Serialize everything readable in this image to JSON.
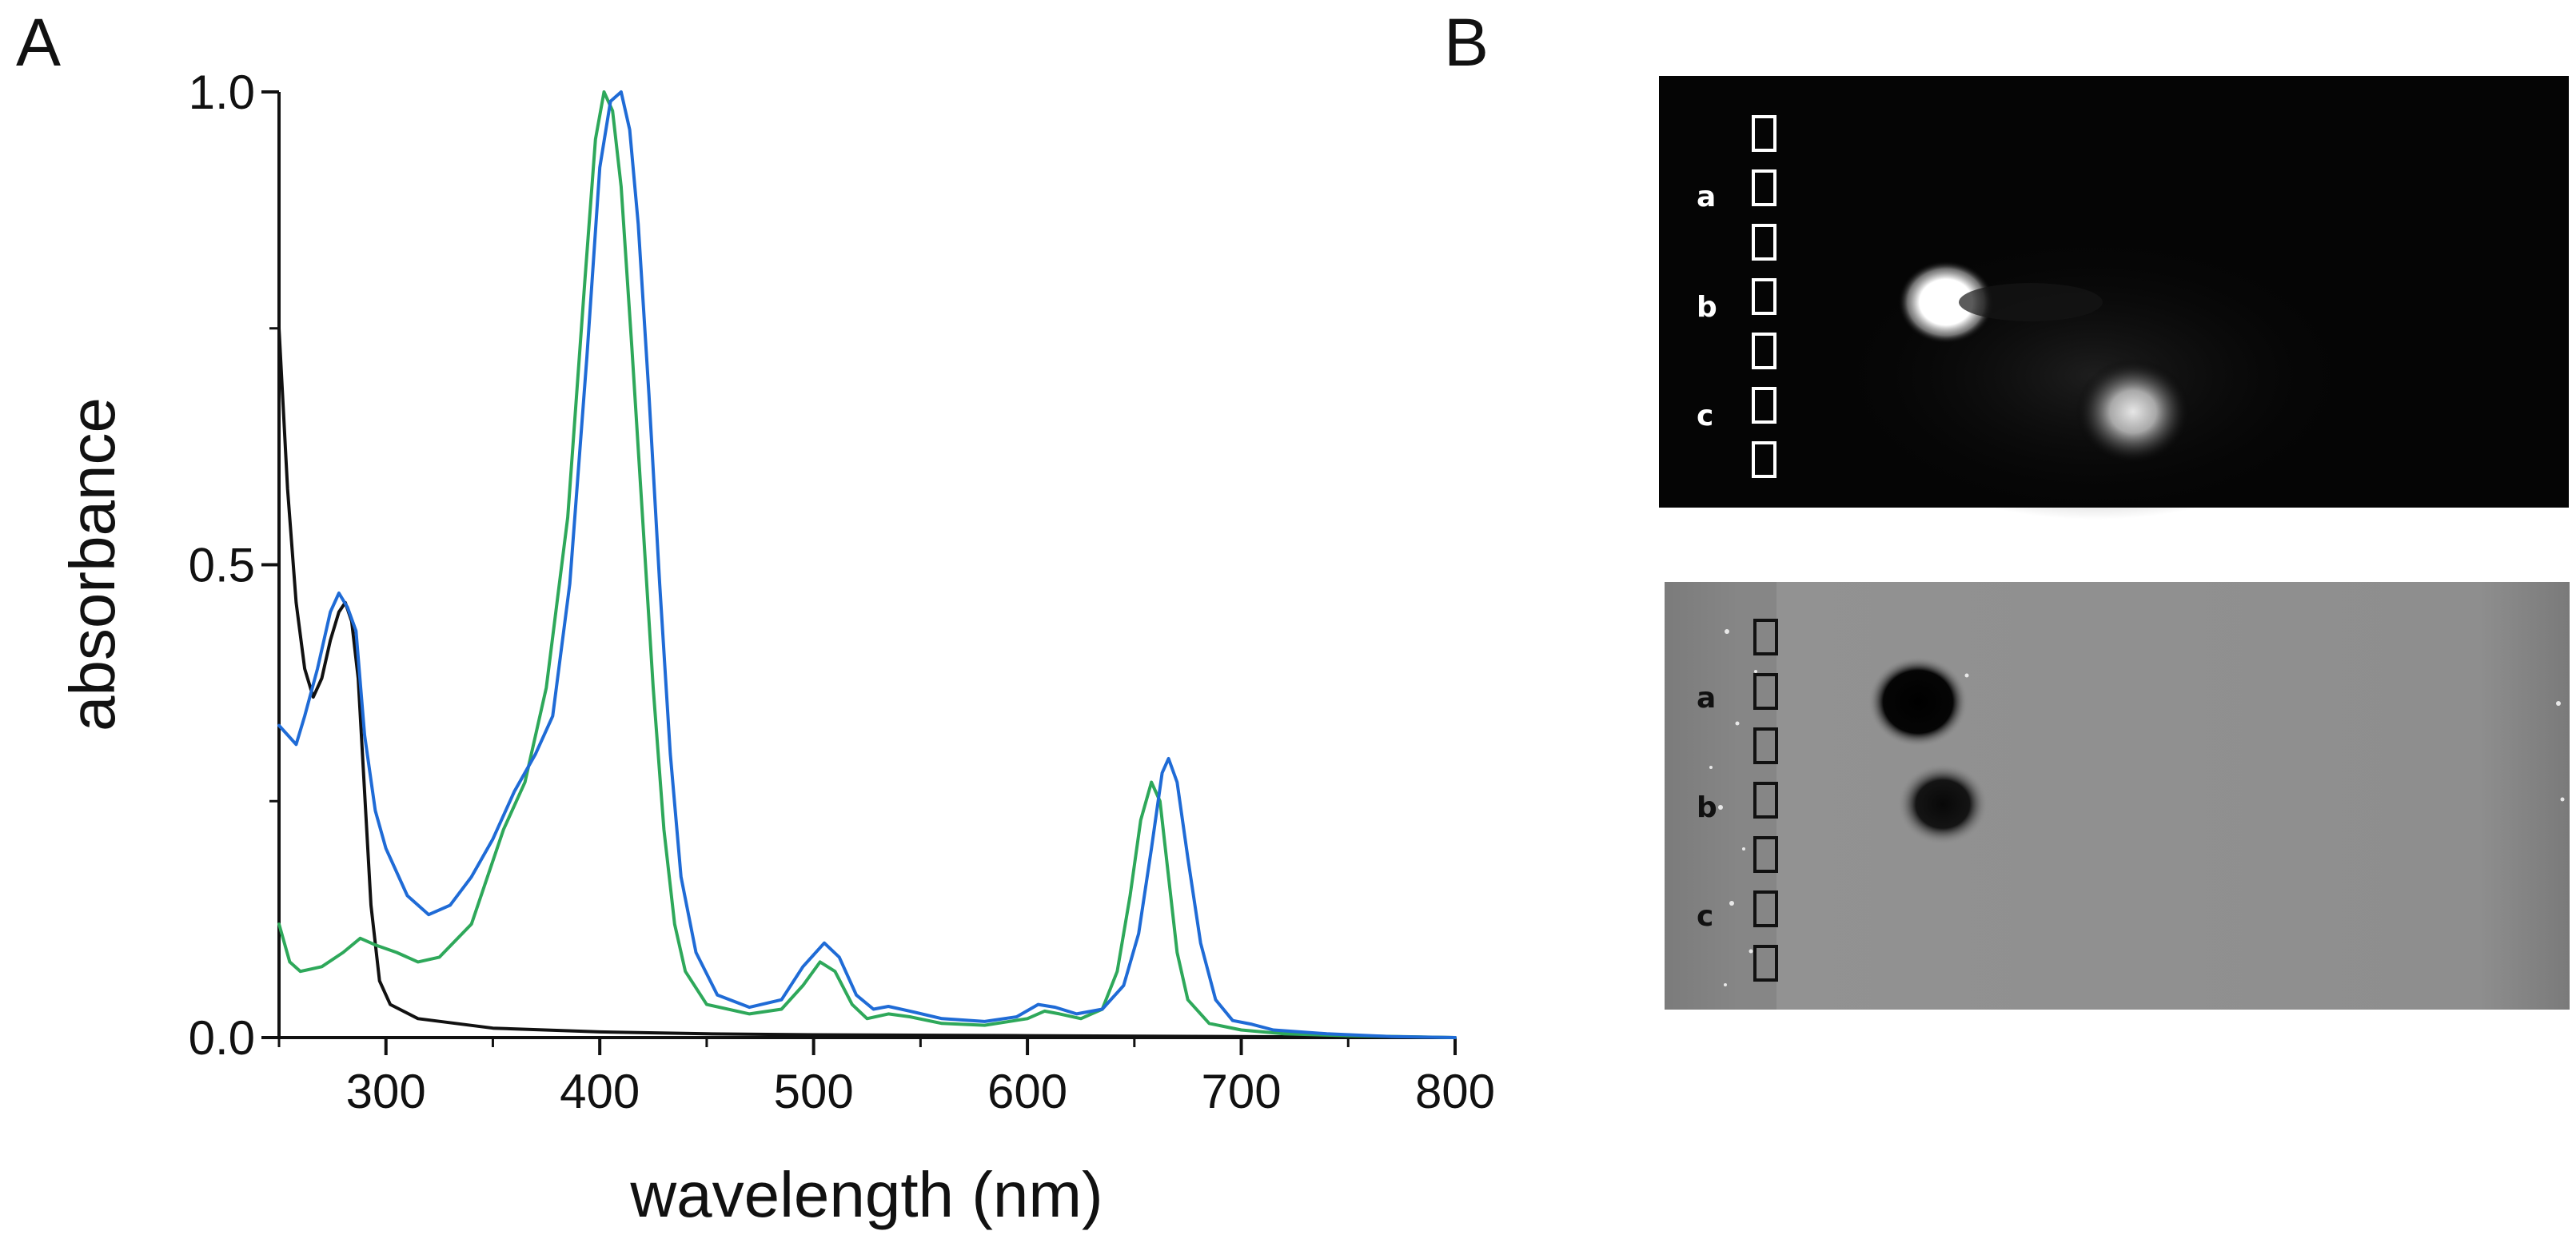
{
  "panel_labels": {
    "a": "A",
    "b": "B"
  },
  "chart_data": {
    "type": "line",
    "title": "",
    "xlabel": "wavelength (nm)",
    "ylabel": "absorbance",
    "xlim": [
      250,
      800
    ],
    "ylim": [
      0,
      1.0
    ],
    "x_ticks": [
      300,
      400,
      500,
      600,
      700,
      800
    ],
    "x_tick_labels": [
      "300",
      "400",
      "500",
      "600",
      "700",
      "800"
    ],
    "y_ticks": [
      0,
      0.5,
      1.0
    ],
    "y_tick_labels": [
      "0.0",
      "0.5",
      "1.0"
    ],
    "grid": false,
    "series": [
      {
        "name": "black",
        "color": "#111111",
        "points": [
          [
            250,
            0.75
          ],
          [
            254,
            0.58
          ],
          [
            258,
            0.46
          ],
          [
            262,
            0.39
          ],
          [
            266,
            0.36
          ],
          [
            270,
            0.38
          ],
          [
            274,
            0.42
          ],
          [
            278,
            0.45
          ],
          [
            281,
            0.46
          ],
          [
            284,
            0.44
          ],
          [
            287,
            0.38
          ],
          [
            290,
            0.26
          ],
          [
            293,
            0.14
          ],
          [
            297,
            0.06
          ],
          [
            302,
            0.035
          ],
          [
            315,
            0.02
          ],
          [
            350,
            0.01
          ],
          [
            400,
            0.006
          ],
          [
            450,
            0.004
          ],
          [
            500,
            0.003
          ],
          [
            600,
            0.002
          ],
          [
            700,
            0.001
          ],
          [
            800,
            0.0
          ]
        ]
      },
      {
        "name": "green",
        "color": "#2ea85a",
        "points": [
          [
            250,
            0.12
          ],
          [
            255,
            0.08
          ],
          [
            260,
            0.07
          ],
          [
            270,
            0.075
          ],
          [
            280,
            0.09
          ],
          [
            288,
            0.105
          ],
          [
            295,
            0.098
          ],
          [
            305,
            0.09
          ],
          [
            315,
            0.08
          ],
          [
            325,
            0.085
          ],
          [
            340,
            0.12
          ],
          [
            355,
            0.22
          ],
          [
            365,
            0.27
          ],
          [
            375,
            0.37
          ],
          [
            385,
            0.55
          ],
          [
            393,
            0.8
          ],
          [
            398,
            0.95
          ],
          [
            402,
            1.0
          ],
          [
            406,
            0.98
          ],
          [
            410,
            0.9
          ],
          [
            415,
            0.73
          ],
          [
            420,
            0.55
          ],
          [
            425,
            0.37
          ],
          [
            430,
            0.22
          ],
          [
            435,
            0.12
          ],
          [
            440,
            0.07
          ],
          [
            450,
            0.035
          ],
          [
            470,
            0.025
          ],
          [
            485,
            0.03
          ],
          [
            495,
            0.055
          ],
          [
            503,
            0.08
          ],
          [
            510,
            0.07
          ],
          [
            518,
            0.035
          ],
          [
            525,
            0.02
          ],
          [
            535,
            0.025
          ],
          [
            545,
            0.022
          ],
          [
            560,
            0.015
          ],
          [
            580,
            0.013
          ],
          [
            600,
            0.02
          ],
          [
            608,
            0.028
          ],
          [
            615,
            0.025
          ],
          [
            625,
            0.02
          ],
          [
            635,
            0.03
          ],
          [
            642,
            0.07
          ],
          [
            648,
            0.15
          ],
          [
            653,
            0.23
          ],
          [
            658,
            0.27
          ],
          [
            662,
            0.25
          ],
          [
            666,
            0.17
          ],
          [
            670,
            0.09
          ],
          [
            675,
            0.04
          ],
          [
            685,
            0.015
          ],
          [
            700,
            0.008
          ],
          [
            720,
            0.004
          ],
          [
            750,
            0.002
          ],
          [
            800,
            0.0
          ]
        ]
      },
      {
        "name": "blue",
        "color": "#1f6bd6",
        "points": [
          [
            250,
            0.33
          ],
          [
            254,
            0.32
          ],
          [
            258,
            0.31
          ],
          [
            262,
            0.34
          ],
          [
            268,
            0.39
          ],
          [
            274,
            0.45
          ],
          [
            278,
            0.47
          ],
          [
            282,
            0.455
          ],
          [
            286,
            0.43
          ],
          [
            290,
            0.32
          ],
          [
            295,
            0.24
          ],
          [
            300,
            0.2
          ],
          [
            310,
            0.15
          ],
          [
            320,
            0.13
          ],
          [
            330,
            0.14
          ],
          [
            340,
            0.17
          ],
          [
            350,
            0.21
          ],
          [
            360,
            0.26
          ],
          [
            370,
            0.3
          ],
          [
            378,
            0.34
          ],
          [
            386,
            0.48
          ],
          [
            394,
            0.72
          ],
          [
            400,
            0.92
          ],
          [
            405,
            0.99
          ],
          [
            410,
            1.0
          ],
          [
            414,
            0.96
          ],
          [
            418,
            0.86
          ],
          [
            423,
            0.68
          ],
          [
            428,
            0.48
          ],
          [
            433,
            0.3
          ],
          [
            438,
            0.17
          ],
          [
            445,
            0.09
          ],
          [
            455,
            0.045
          ],
          [
            470,
            0.032
          ],
          [
            485,
            0.04
          ],
          [
            495,
            0.075
          ],
          [
            505,
            0.1
          ],
          [
            512,
            0.085
          ],
          [
            520,
            0.045
          ],
          [
            528,
            0.03
          ],
          [
            535,
            0.033
          ],
          [
            545,
            0.028
          ],
          [
            560,
            0.02
          ],
          [
            580,
            0.017
          ],
          [
            595,
            0.022
          ],
          [
            605,
            0.035
          ],
          [
            613,
            0.032
          ],
          [
            623,
            0.025
          ],
          [
            635,
            0.03
          ],
          [
            645,
            0.055
          ],
          [
            652,
            0.11
          ],
          [
            658,
            0.2
          ],
          [
            663,
            0.28
          ],
          [
            666,
            0.295
          ],
          [
            670,
            0.27
          ],
          [
            675,
            0.19
          ],
          [
            681,
            0.1
          ],
          [
            688,
            0.04
          ],
          [
            696,
            0.018
          ],
          [
            705,
            0.014
          ],
          [
            715,
            0.008
          ],
          [
            740,
            0.004
          ],
          [
            770,
            0.001
          ],
          [
            800,
            0.0
          ]
        ]
      }
    ]
  },
  "tlc": {
    "top_plate": {
      "lanes": [
        "a",
        "b",
        "c"
      ],
      "glyph_count": 7
    },
    "bottom_plate": {
      "lanes": [
        "a",
        "b",
        "c"
      ],
      "glyph_count": 7
    }
  }
}
